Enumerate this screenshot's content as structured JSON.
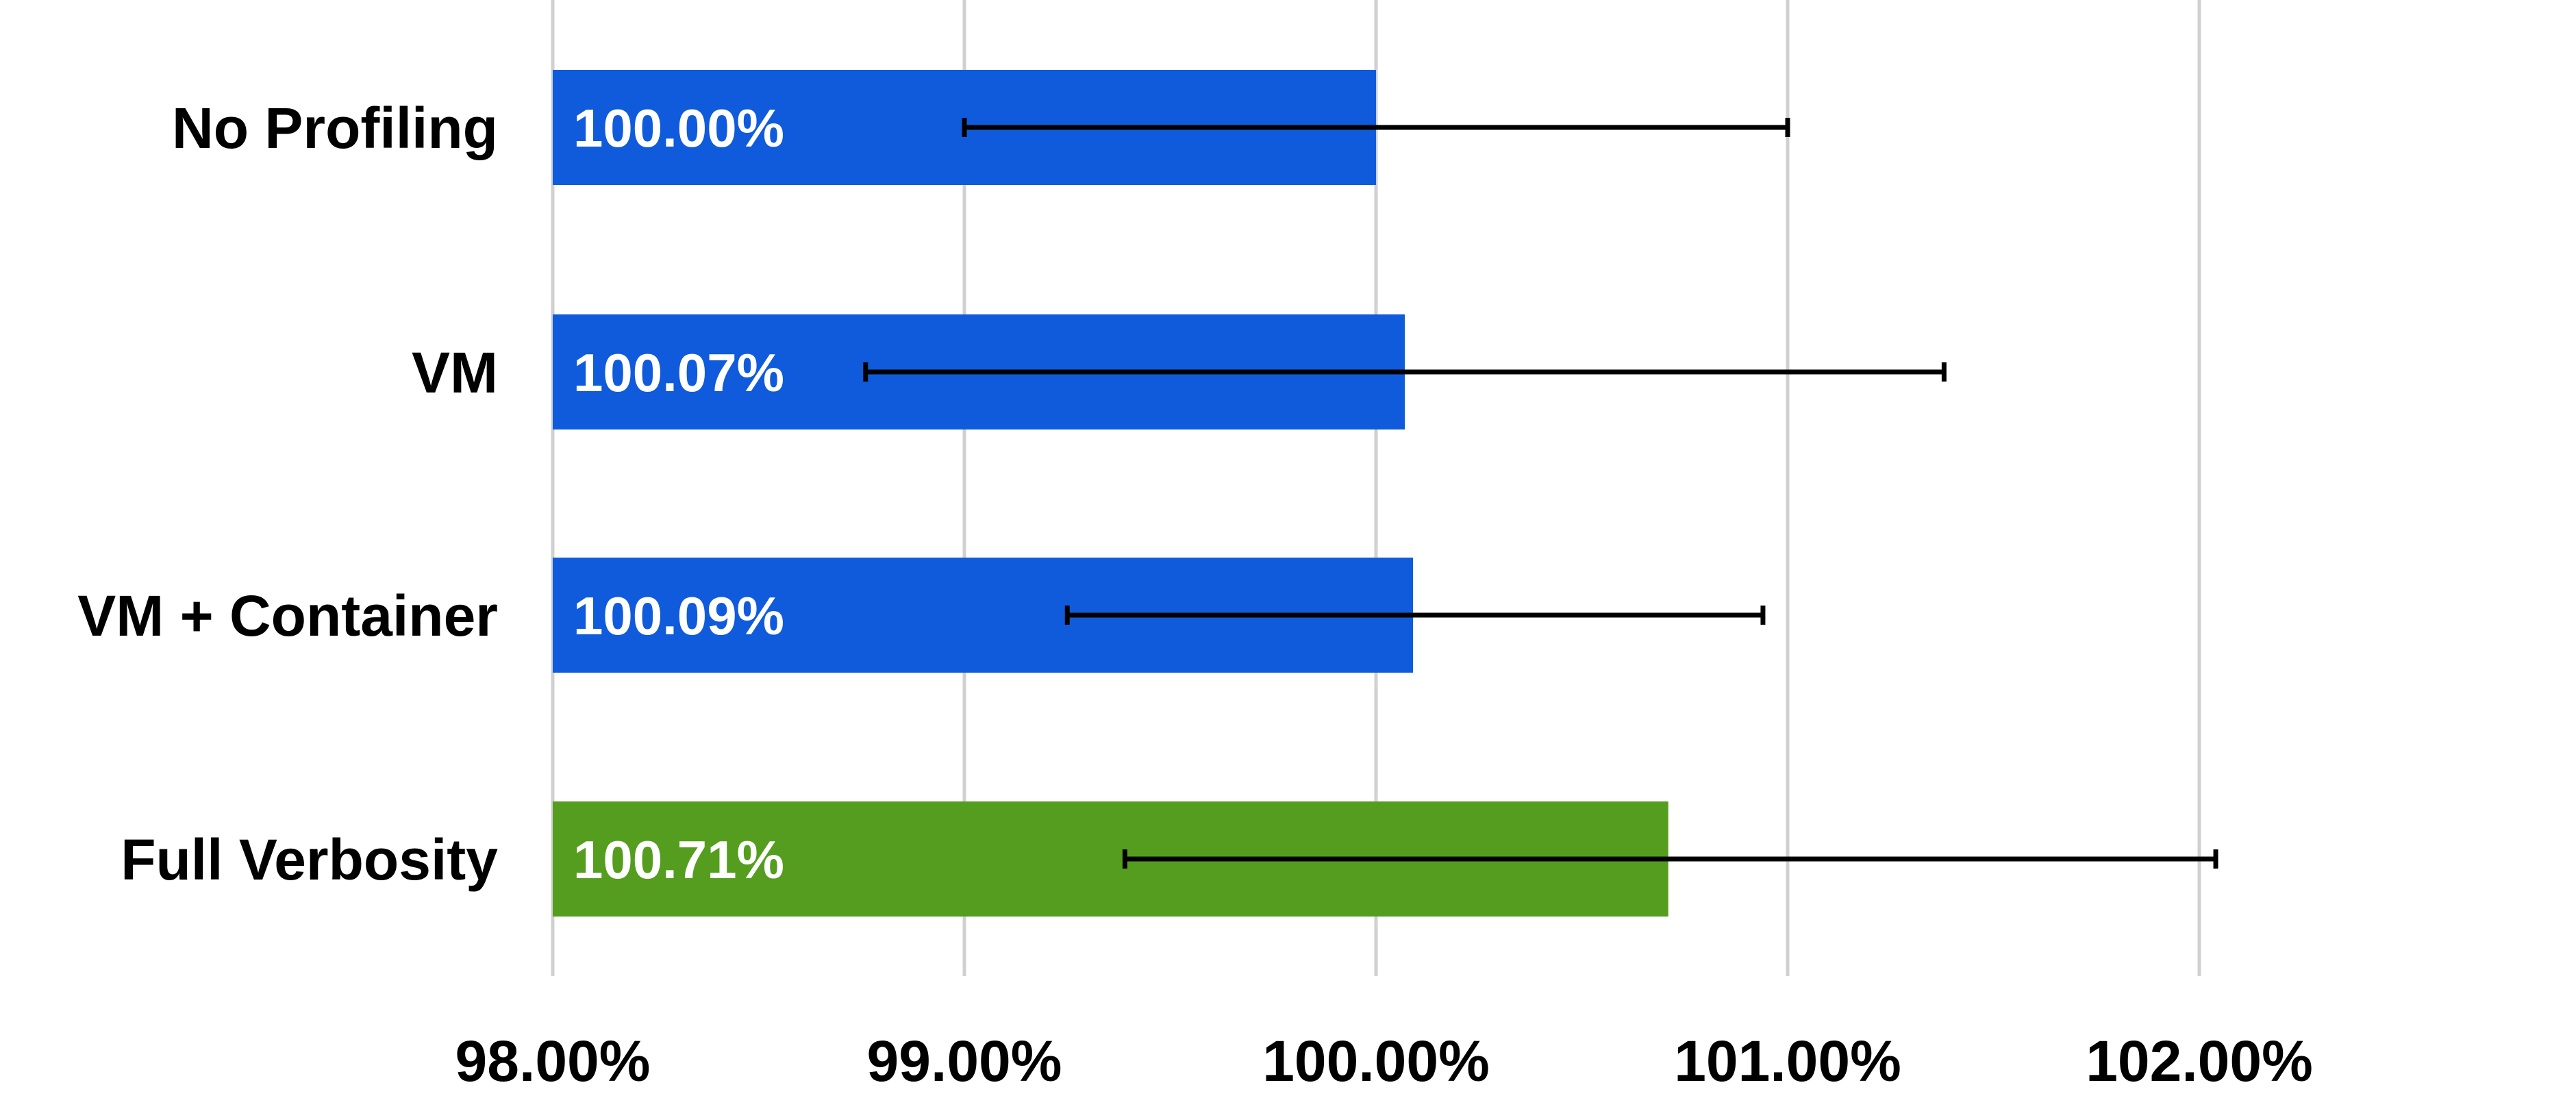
{
  "chart_data": {
    "type": "bar",
    "orientation": "horizontal",
    "categories": [
      "No Profiling",
      "VM",
      "VM + Container",
      "Full Verbosity"
    ],
    "values": [
      100.0,
      100.07,
      100.09,
      100.71
    ],
    "data_labels": [
      "100.00%",
      "100.07%",
      "100.09%",
      "100.71%"
    ],
    "error_bars": [
      {
        "low": 99.0,
        "high": 101.0
      },
      {
        "low": 98.76,
        "high": 101.38
      },
      {
        "low": 99.25,
        "high": 100.94
      },
      {
        "low": 99.39,
        "high": 102.04
      }
    ],
    "bar_colors": [
      "#0f5bdc",
      "#0f5bdc",
      "#0f5bdc",
      "#559d1e"
    ],
    "title": "",
    "xlabel": "",
    "ylabel": "",
    "xlim": [
      98.0,
      102.0
    ],
    "x_ticks": [
      98.0,
      99.0,
      100.0,
      101.0,
      102.0
    ],
    "x_tick_labels": [
      "98.00%",
      "99.00%",
      "100.00%",
      "101.00%",
      "102.00%"
    ],
    "grid": true,
    "grid_color": "#d0d0d0",
    "legend": "none"
  }
}
